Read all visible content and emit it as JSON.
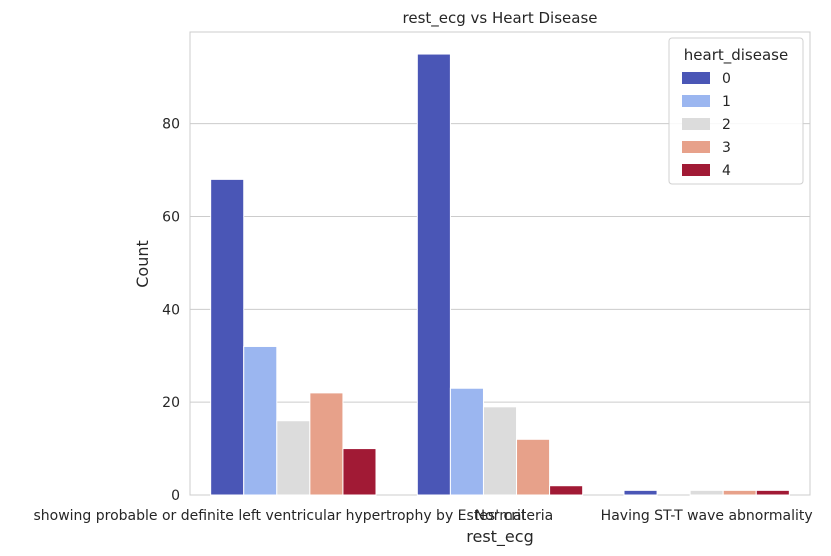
{
  "chart_data": {
    "type": "bar",
    "title": "rest_ecg vs Heart Disease",
    "xlabel": "rest_ecg",
    "ylabel": "Count",
    "categories": [
      "showing probable or definite left ventricular hypertrophy by Estes' criteria",
      "Normal",
      "Having ST-T wave abnormality"
    ],
    "yticks": [
      0,
      20,
      40,
      60,
      80
    ],
    "ylim": [
      0,
      99.75
    ],
    "grid": true,
    "legend": {
      "title": "heart_disease",
      "placement": "top-right"
    },
    "series": [
      {
        "name": "0",
        "color": "#4a56b6",
        "values": [
          68,
          95,
          1
        ]
      },
      {
        "name": "1",
        "color": "#9bb6f0",
        "values": [
          32,
          23,
          0
        ]
      },
      {
        "name": "2",
        "color": "#dcdcdc",
        "values": [
          16,
          19,
          1
        ]
      },
      {
        "name": "3",
        "color": "#e7a18a",
        "values": [
          22,
          12,
          1
        ]
      },
      {
        "name": "4",
        "color": "#a11a35",
        "values": [
          10,
          2,
          1
        ]
      }
    ]
  }
}
